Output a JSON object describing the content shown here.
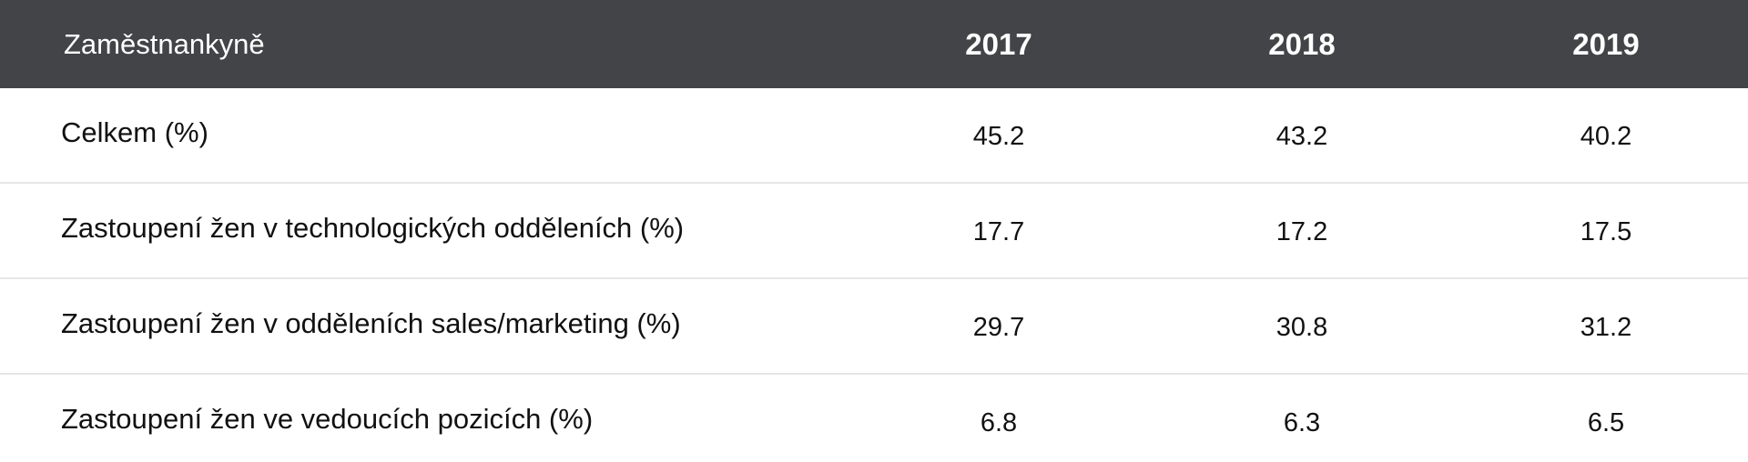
{
  "table": {
    "header": {
      "label": "Zaměstnankyně",
      "years": [
        "2017",
        "2018",
        "2019"
      ]
    },
    "rows": [
      {
        "label": "Celkem (%)",
        "values": [
          "45.2",
          "43.2",
          "40.2"
        ]
      },
      {
        "label": "Zastoupení žen v technologických odděleních (%)",
        "values": [
          "17.7",
          "17.2",
          "17.5"
        ]
      },
      {
        "label": "Zastoupení žen v odděleních sales/marketing (%)",
        "values": [
          "29.7",
          "30.8",
          "31.2"
        ]
      },
      {
        "label": "Zastoupení žen ve vedoucích pozicích (%)",
        "values": [
          "6.8",
          "6.3",
          "6.5"
        ]
      }
    ]
  },
  "colors": {
    "header_bg": "#434447",
    "header_text": "#ffffff",
    "row_divider": "#e6e6e6",
    "body_text": "#111111"
  }
}
